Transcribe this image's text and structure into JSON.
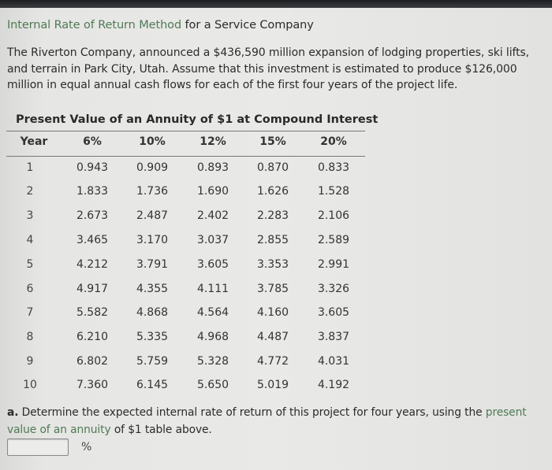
{
  "header": {
    "title_link": "Internal Rate of Return Method",
    "title_rest": " for a Service Company"
  },
  "intro": "The Riverton Company, announced a $436,590 million expansion of lodging properties, ski lifts, and terrain in Park City, Utah. Assume that this investment is estimated to produce $126,000 million in equal annual cash flows for each of the first four years of the project life.",
  "table": {
    "caption": "Present Value of an Annuity of $1 at Compound Interest",
    "columns": [
      "Year",
      "6%",
      "10%",
      "12%",
      "15%",
      "20%"
    ],
    "rows": [
      [
        "1",
        "0.943",
        "0.909",
        "0.893",
        "0.870",
        "0.833"
      ],
      [
        "2",
        "1.833",
        "1.736",
        "1.690",
        "1.626",
        "1.528"
      ],
      [
        "3",
        "2.673",
        "2.487",
        "2.402",
        "2.283",
        "2.106"
      ],
      [
        "4",
        "3.465",
        "3.170",
        "3.037",
        "2.855",
        "2.589"
      ],
      [
        "5",
        "4.212",
        "3.791",
        "3.605",
        "3.353",
        "2.991"
      ],
      [
        "6",
        "4.917",
        "4.355",
        "4.111",
        "3.785",
        "3.326"
      ],
      [
        "7",
        "5.582",
        "4.868",
        "4.564",
        "4.160",
        "3.605"
      ],
      [
        "8",
        "6.210",
        "5.335",
        "4.968",
        "4.487",
        "3.837"
      ],
      [
        "9",
        "6.802",
        "5.759",
        "5.328",
        "4.772",
        "4.031"
      ],
      [
        "10",
        "7.360",
        "6.145",
        "5.650",
        "5.019",
        "4.192"
      ]
    ]
  },
  "question": {
    "label": "a.",
    "text_before": " Determine the expected internal rate of return of this project for four years, using the ",
    "link": "present value of an annuity",
    "text_after": " of $1 table above.",
    "answer_value": "",
    "unit": "%"
  },
  "colors": {
    "link_green": "#4f7a55",
    "text": "#2b2b2b",
    "background": "#e6e6e4"
  }
}
